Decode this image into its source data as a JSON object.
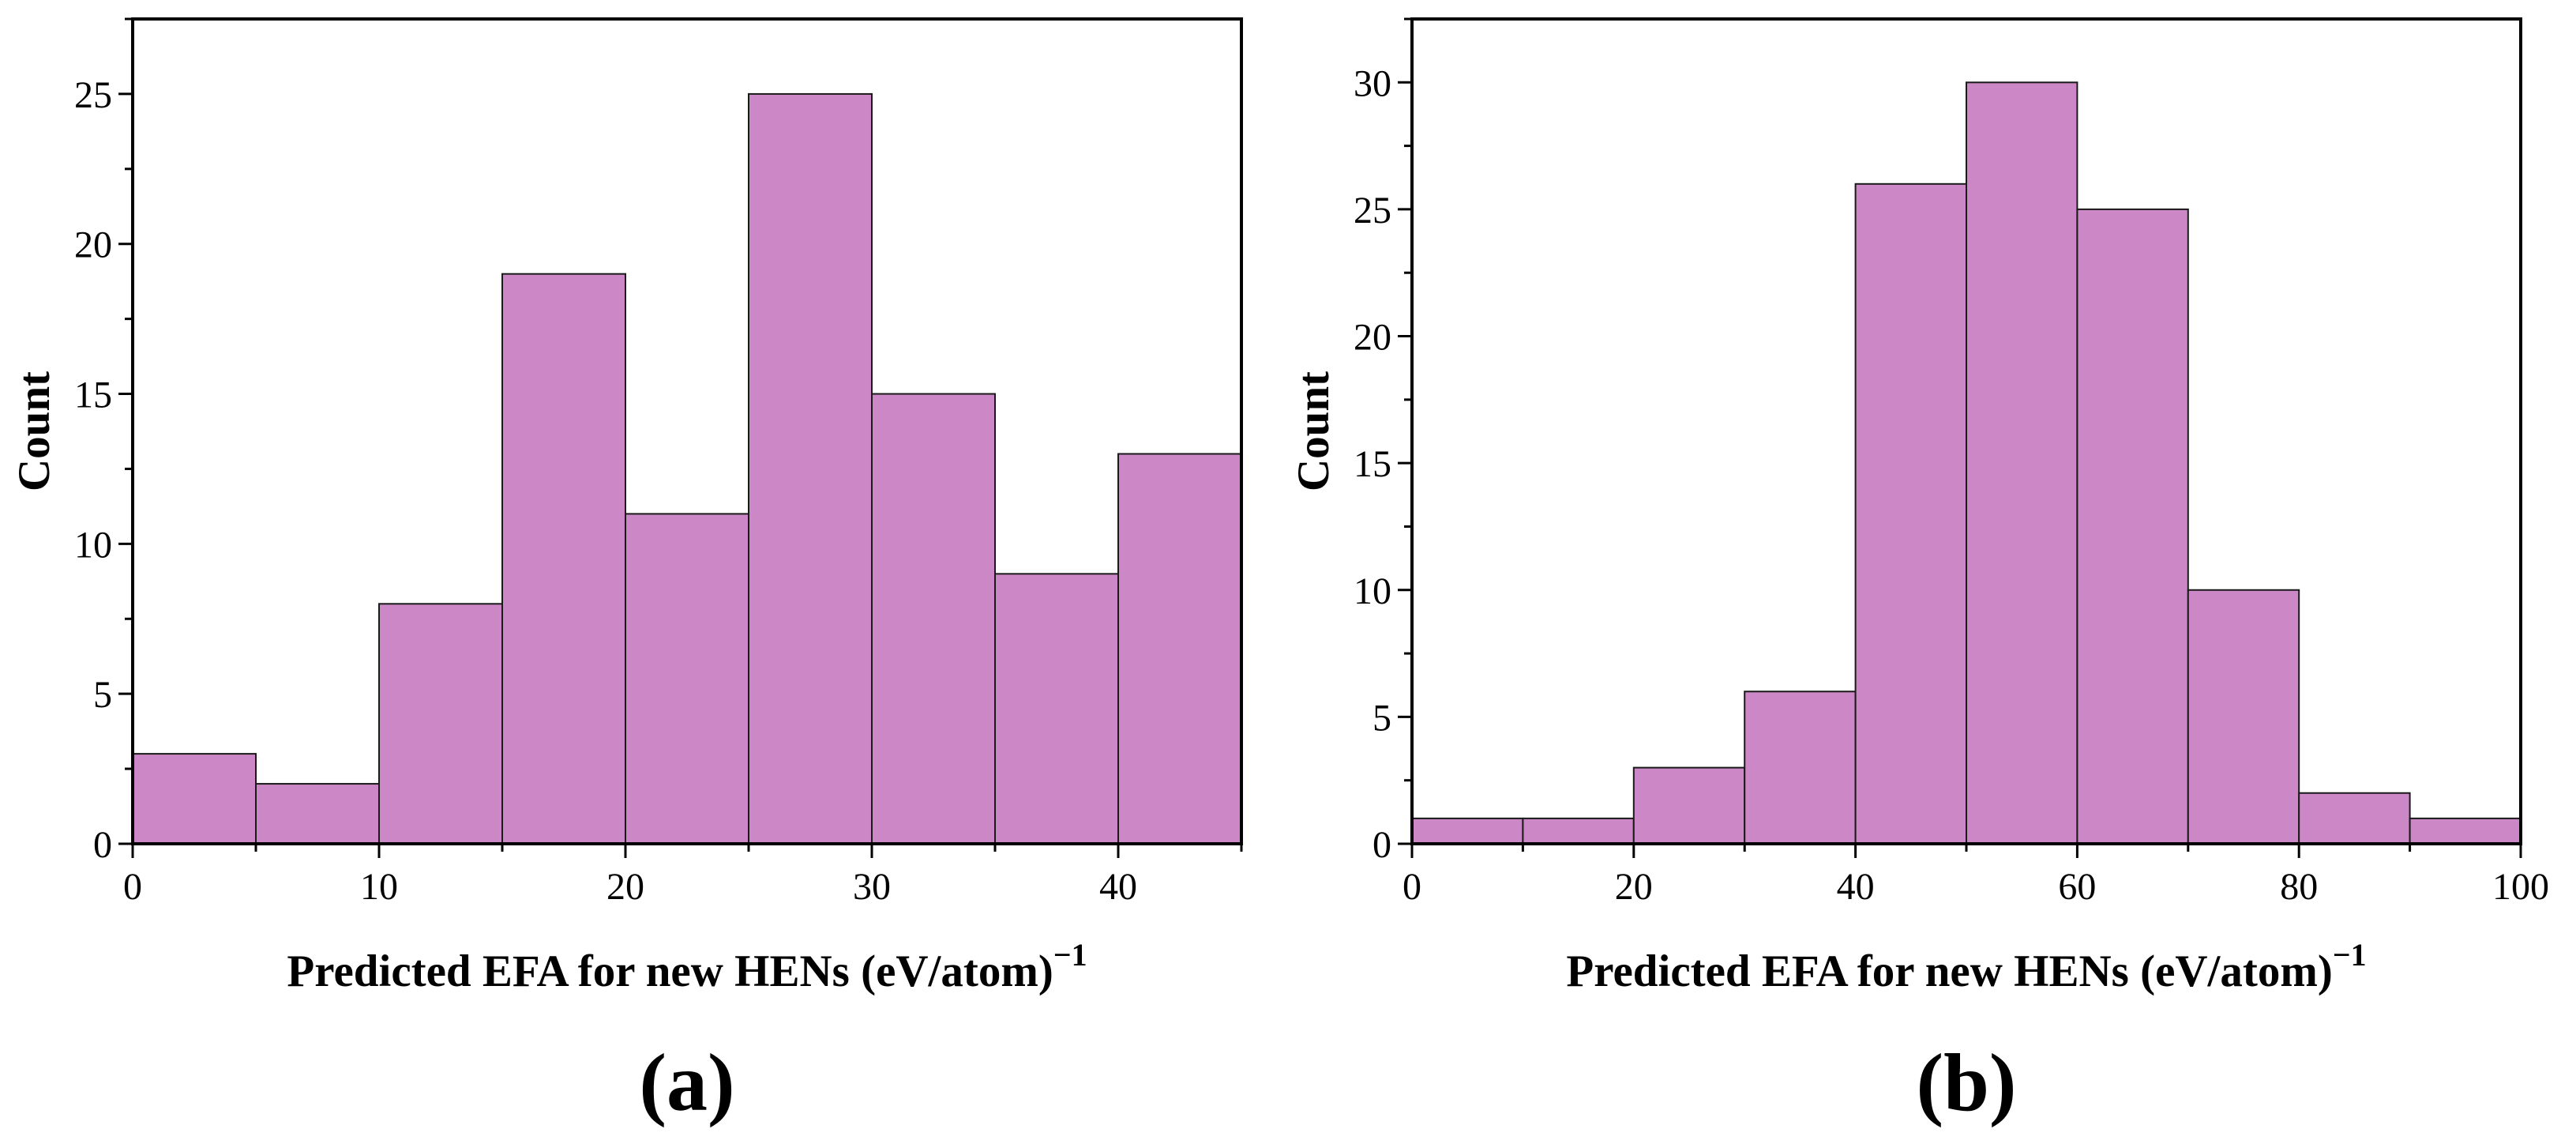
{
  "colors": {
    "bar_fill": "#cc88c6",
    "bar_stroke": "#1a1a1a",
    "axis": "#000000"
  },
  "chart_data": [
    {
      "type": "bar",
      "histogram": true,
      "panel_label": "(a)",
      "xlabel": "Predicted EFA for new HENs (eV/atom)",
      "xlabel_superscript": "−1",
      "ylabel": "Count",
      "xlim": [
        0,
        45
      ],
      "ylim": [
        0,
        27.5
      ],
      "bin_edges": [
        0,
        5,
        10,
        15,
        20,
        25,
        30,
        35,
        40,
        45
      ],
      "values": [
        3,
        2,
        8,
        19,
        11,
        25,
        15,
        9,
        13
      ],
      "x_ticks": [
        0,
        10,
        20,
        30,
        40
      ],
      "y_ticks": [
        0,
        5,
        10,
        15,
        20,
        25
      ],
      "grid": false
    },
    {
      "type": "bar",
      "histogram": true,
      "panel_label": "(b)",
      "xlabel": "Predicted EFA for new HENs (eV/atom)",
      "xlabel_superscript": "−1",
      "ylabel": "Count",
      "xlim": [
        0,
        100
      ],
      "ylim": [
        0,
        32.5
      ],
      "bin_edges": [
        0,
        10,
        20,
        30,
        40,
        50,
        60,
        70,
        80,
        90,
        100
      ],
      "values": [
        1,
        1,
        3,
        6,
        26,
        30,
        25,
        10,
        2,
        1
      ],
      "x_ticks": [
        0,
        20,
        40,
        60,
        80,
        100
      ],
      "y_ticks": [
        0,
        5,
        10,
        15,
        20,
        25,
        30
      ],
      "grid": false
    }
  ]
}
